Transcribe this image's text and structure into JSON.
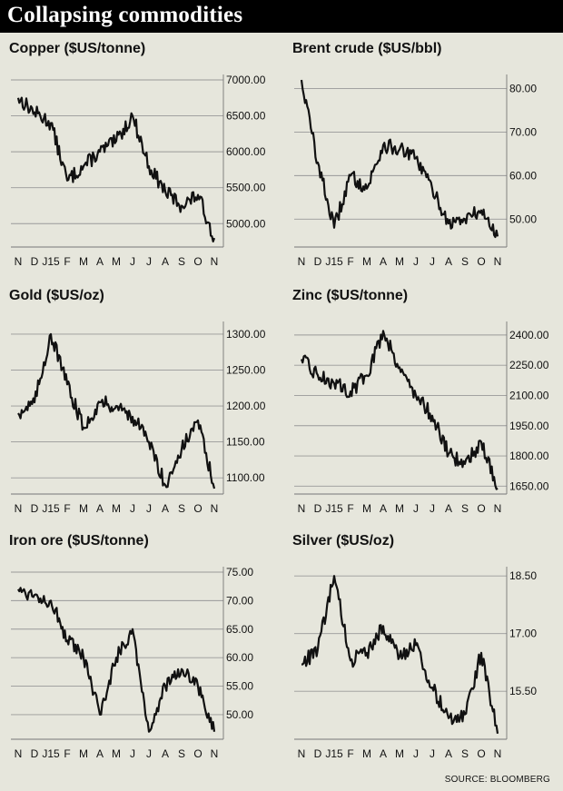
{
  "title": "Collapsing commodities",
  "source": "SOURCE: BLOOMBERG",
  "colors": {
    "background": "#e6e6dc",
    "line": "#111111",
    "gridline": "#999999",
    "title_bar": "#000000"
  },
  "chart_data": [
    {
      "type": "line",
      "title": "Copper ($US/tonne)",
      "x_labels": [
        "N",
        "D",
        "J15",
        "F",
        "M",
        "A",
        "M",
        "J",
        "J",
        "A",
        "S",
        "O",
        "N"
      ],
      "y_ticks": [
        "7000.00",
        "6500.00",
        "6000.00",
        "5500.00",
        "5000.00"
      ],
      "ylim": [
        4700,
        7000
      ],
      "x": [
        "N",
        "D",
        "J15",
        "F",
        "M",
        "A",
        "M",
        "J",
        "J",
        "A",
        "S",
        "O",
        "N"
      ],
      "values": [
        6750,
        6550,
        6400,
        5600,
        5800,
        6000,
        6150,
        6500,
        5800,
        5450,
        5250,
        5400,
        4800
      ]
    },
    {
      "type": "line",
      "title": "Brent crude ($US/bbl)",
      "x_labels": [
        "N",
        "D",
        "J15",
        "F",
        "M",
        "A",
        "M",
        "J",
        "J",
        "A",
        "S",
        "O",
        "N"
      ],
      "y_ticks": [
        "80.00",
        "70.00",
        "60.00",
        "50.00"
      ],
      "ylim": [
        44,
        82
      ],
      "x": [
        "N",
        "D",
        "J15",
        "F",
        "M",
        "A",
        "M",
        "J",
        "J",
        "A",
        "S",
        "O",
        "N"
      ],
      "values": [
        82,
        63,
        48,
        60,
        57,
        67,
        66,
        64,
        57,
        49,
        50,
        52,
        46
      ]
    },
    {
      "type": "line",
      "title": "Gold ($US/oz)",
      "x_labels": [
        "N",
        "D",
        "J15",
        "F",
        "M",
        "A",
        "M",
        "J",
        "J",
        "A",
        "S",
        "O",
        "N"
      ],
      "y_ticks": [
        "1300.00",
        "1250.00",
        "1200.00",
        "1150.00",
        "1100.00"
      ],
      "ylim": [
        1080,
        1310
      ],
      "x": [
        "N",
        "D",
        "J15",
        "F",
        "M",
        "A",
        "M",
        "J",
        "J",
        "A",
        "S",
        "O",
        "N"
      ],
      "values": [
        1190,
        1205,
        1300,
        1230,
        1170,
        1205,
        1200,
        1185,
        1150,
        1090,
        1140,
        1180,
        1085
      ]
    },
    {
      "type": "line",
      "title": "Zinc ($US/tonne)",
      "x_labels": [
        "N",
        "D",
        "J15",
        "F",
        "M",
        "A",
        "M",
        "J",
        "J",
        "A",
        "S",
        "O",
        "N"
      ],
      "y_ticks": [
        "2400.00",
        "2250.00",
        "2100.00",
        "1950.00",
        "1800.00",
        "1650.00"
      ],
      "ylim": [
        1620,
        2440
      ],
      "x": [
        "N",
        "D",
        "J15",
        "F",
        "M",
        "A",
        "M",
        "J",
        "J",
        "A",
        "S",
        "O",
        "N"
      ],
      "values": [
        2280,
        2200,
        2160,
        2120,
        2200,
        2420,
        2240,
        2100,
        2000,
        1810,
        1760,
        1870,
        1640
      ]
    },
    {
      "type": "line",
      "title": "Iron ore ($US/tonne)",
      "x_labels": [
        "N",
        "D",
        "J15",
        "F",
        "M",
        "A",
        "M",
        "J",
        "J",
        "A",
        "S",
        "O",
        "N"
      ],
      "y_ticks": [
        "75.00",
        "70.00",
        "65.00",
        "60.00",
        "55.00",
        "50.00"
      ],
      "ylim": [
        46,
        75
      ],
      "x": [
        "N",
        "D",
        "J15",
        "F",
        "M",
        "A",
        "M",
        "J",
        "J",
        "A",
        "S",
        "O",
        "N"
      ],
      "values": [
        72,
        71,
        70,
        63,
        60,
        50,
        60,
        65,
        47,
        55,
        58,
        55,
        47
      ]
    },
    {
      "type": "line",
      "title": "Silver ($US/oz)",
      "x_labels": [
        "N",
        "D",
        "J15",
        "F",
        "M",
        "A",
        "M",
        "J",
        "J",
        "A",
        "S",
        "O",
        "N"
      ],
      "y_ticks": [
        "18.50",
        "17.00",
        "15.50"
      ],
      "ylim": [
        14.3,
        18.6
      ],
      "x": [
        "N",
        "D",
        "J15",
        "F",
        "M",
        "A",
        "M",
        "J",
        "J",
        "A",
        "S",
        "O",
        "N"
      ],
      "values": [
        16.2,
        16.6,
        18.5,
        16.3,
        16.5,
        17.2,
        16.4,
        16.7,
        15.6,
        14.8,
        14.9,
        16.5,
        14.4
      ]
    }
  ]
}
